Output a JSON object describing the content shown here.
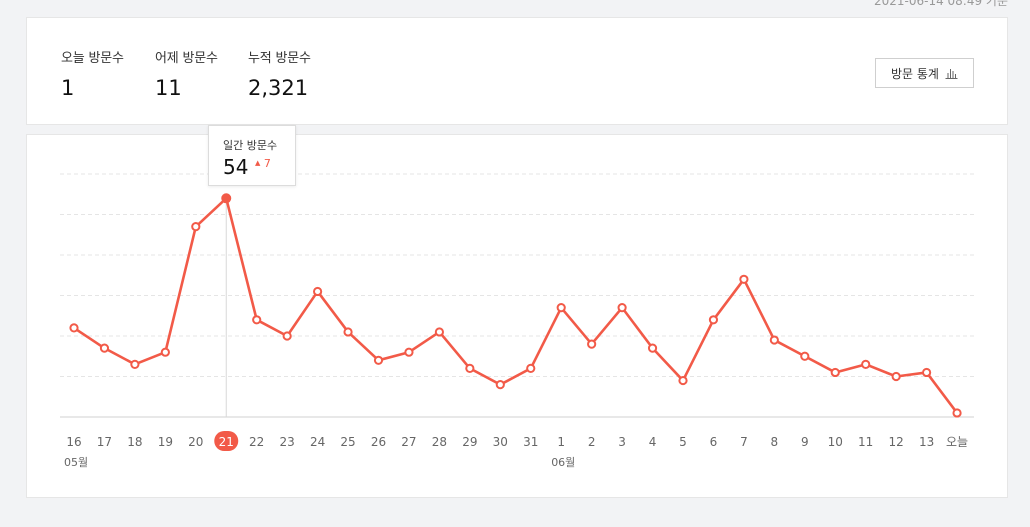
{
  "timestamp": "2021-06-14 08:49 기준",
  "summary": {
    "today_label": "오늘 방문수",
    "today_value": "1",
    "yesterday_label": "어제 방문수",
    "yesterday_value": "11",
    "total_label": "누적 방문수",
    "total_value": "2,321",
    "stats_button": "방문 통계"
  },
  "tooltip": {
    "label": "일간 방문수",
    "value": "54",
    "delta": "7"
  },
  "colors": {
    "line": "#f25a48",
    "grid": "#e5e5e5",
    "axis_text": "#666",
    "highlight": "#f25a48"
  },
  "icons": {
    "stats_button_icon": "bar-chart-icon",
    "delta_icon": "up-triangle-icon"
  },
  "chart_data": {
    "type": "line",
    "categories": [
      "16",
      "17",
      "18",
      "19",
      "20",
      "21",
      "22",
      "23",
      "24",
      "25",
      "26",
      "27",
      "28",
      "29",
      "30",
      "31",
      "1",
      "2",
      "3",
      "4",
      "5",
      "6",
      "7",
      "8",
      "9",
      "10",
      "11",
      "12",
      "13",
      "오늘"
    ],
    "month_labels": [
      {
        "text": "05월",
        "at": 0
      },
      {
        "text": "06월",
        "at": 16
      }
    ],
    "highlight_index": 5,
    "series": [
      {
        "values": [
          22,
          17,
          13,
          16,
          47,
          54,
          24,
          20,
          31,
          21,
          14,
          16,
          21,
          12,
          8,
          12,
          27,
          18,
          27,
          17,
          9,
          24,
          34,
          19,
          15,
          11,
          13,
          10,
          11,
          1
        ]
      }
    ],
    "ylim": [
      0,
      60
    ],
    "grid": true
  }
}
